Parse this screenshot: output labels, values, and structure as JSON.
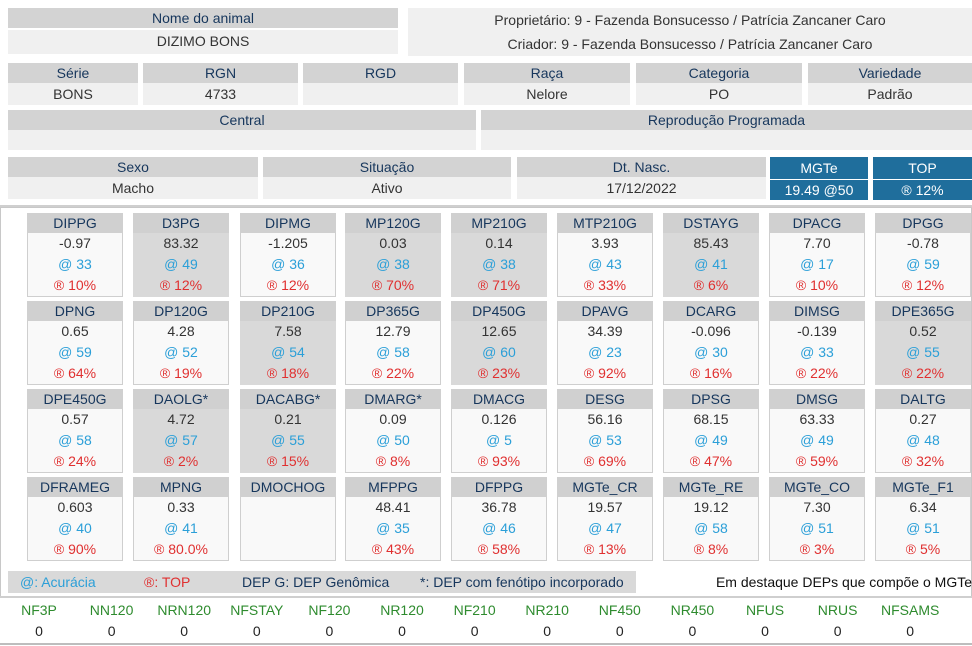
{
  "animal": {
    "name_label": "Nome do animal",
    "name": "DIZIMO BONS",
    "owner": "Proprietário: 9 - Fazenda Bonsucesso / Patrícia Zancaner Caro",
    "breeder": "Criador: 9 - Fazenda Bonsucesso / Patrícia Zancaner Caro"
  },
  "fields": {
    "serie": {
      "label": "Série",
      "value": "BONS"
    },
    "rgn": {
      "label": "RGN",
      "value": "4733"
    },
    "rgd": {
      "label": "RGD",
      "value": ""
    },
    "raca": {
      "label": "Raça",
      "value": "Nelore"
    },
    "categoria": {
      "label": "Categoria",
      "value": "PO"
    },
    "variedade": {
      "label": "Variedade",
      "value": "Padrão"
    },
    "central": {
      "label": "Central",
      "value": ""
    },
    "reproducao": {
      "label": "Reprodução Programada",
      "value": ""
    },
    "sexo": {
      "label": "Sexo",
      "value": "Macho"
    },
    "situacao": {
      "label": "Situação",
      "value": "Ativo"
    },
    "dtnasc": {
      "label": "Dt. Nasc.",
      "value": "17/12/2022"
    },
    "mgte": {
      "label": "MGTe",
      "value": "19.49  @50"
    },
    "top": {
      "label": "TOP",
      "value": "® 12%"
    }
  },
  "deps": [
    {
      "name": "DIPPG",
      "value": "-0.97",
      "acc": "@ 33",
      "top": "® 10%",
      "hl": false
    },
    {
      "name": "D3PG",
      "value": "83.32",
      "acc": "@ 49",
      "top": "® 12%",
      "hl": true
    },
    {
      "name": "DIPMG",
      "value": "-1.205",
      "acc": "@ 36",
      "top": "® 12%",
      "hl": false
    },
    {
      "name": "MP120G",
      "value": "0.03",
      "acc": "@ 38",
      "top": "® 70%",
      "hl": true
    },
    {
      "name": "MP210G",
      "value": "0.14",
      "acc": "@ 38",
      "top": "® 71%",
      "hl": true
    },
    {
      "name": "MTP210G",
      "value": "3.93",
      "acc": "@ 43",
      "top": "® 33%",
      "hl": false
    },
    {
      "name": "DSTAYG",
      "value": "85.43",
      "acc": "@ 41",
      "top": "® 6%",
      "hl": true
    },
    {
      "name": "DPACG",
      "value": "7.70",
      "acc": "@ 17",
      "top": "® 10%",
      "hl": false
    },
    {
      "name": "DPGG",
      "value": "-0.78",
      "acc": "@ 59",
      "top": "® 12%",
      "hl": false
    },
    {
      "name": "DPNG",
      "value": "0.65",
      "acc": "@ 59",
      "top": "® 64%",
      "hl": false
    },
    {
      "name": "DP120G",
      "value": "4.28",
      "acc": "@ 52",
      "top": "® 19%",
      "hl": false
    },
    {
      "name": "DP210G",
      "value": "7.58",
      "acc": "@ 54",
      "top": "® 18%",
      "hl": true
    },
    {
      "name": "DP365G",
      "value": "12.79",
      "acc": "@ 58",
      "top": "® 22%",
      "hl": false
    },
    {
      "name": "DP450G",
      "value": "12.65",
      "acc": "@ 60",
      "top": "® 23%",
      "hl": true
    },
    {
      "name": "DPAVG",
      "value": "34.39",
      "acc": "@ 23",
      "top": "® 92%",
      "hl": false
    },
    {
      "name": "DCARG",
      "value": "-0.096",
      "acc": "@ 30",
      "top": "® 16%",
      "hl": false
    },
    {
      "name": "DIMSG",
      "value": "-0.139",
      "acc": "@ 33",
      "top": "® 22%",
      "hl": false
    },
    {
      "name": "DPE365G",
      "value": "0.52",
      "acc": "@ 55",
      "top": "® 22%",
      "hl": true
    },
    {
      "name": "DPE450G",
      "value": "0.57",
      "acc": "@ 58",
      "top": "® 24%",
      "hl": false
    },
    {
      "name": "DAOLG*",
      "value": "4.72",
      "acc": "@ 57",
      "top": "® 2%",
      "hl": true
    },
    {
      "name": "DACABG*",
      "value": "0.21",
      "acc": "@ 55",
      "top": "® 15%",
      "hl": true
    },
    {
      "name": "DMARG*",
      "value": "0.09",
      "acc": "@ 50",
      "top": "® 8%",
      "hl": false
    },
    {
      "name": "DMACG",
      "value": "0.126",
      "acc": "@ 5",
      "top": "® 93%",
      "hl": false
    },
    {
      "name": "DESG",
      "value": "56.16",
      "acc": "@ 53",
      "top": "® 69%",
      "hl": false
    },
    {
      "name": "DPSG",
      "value": "68.15",
      "acc": "@ 49",
      "top": "® 47%",
      "hl": false
    },
    {
      "name": "DMSG",
      "value": "63.33",
      "acc": "@ 49",
      "top": "® 59%",
      "hl": false
    },
    {
      "name": "DALTG",
      "value": "0.27",
      "acc": "@ 48",
      "top": "® 32%",
      "hl": false
    },
    {
      "name": "DFRAMEG",
      "value": "0.603",
      "acc": "@ 40",
      "top": "® 90%",
      "hl": false
    },
    {
      "name": "MPNG",
      "value": "0.33",
      "acc": "@ 41",
      "top": "® 80.0%",
      "hl": false
    },
    {
      "name": "DMOCHOG",
      "value": "",
      "acc": "",
      "top": "",
      "hl": false
    },
    {
      "name": "MFPPG",
      "value": "48.41",
      "acc": "@ 35",
      "top": "® 43%",
      "hl": false
    },
    {
      "name": "DFPPG",
      "value": "36.78",
      "acc": "@ 46",
      "top": "® 58%",
      "hl": false
    },
    {
      "name": "MGTe_CR",
      "value": "19.57",
      "acc": "@ 47",
      "top": "® 13%",
      "hl": false
    },
    {
      "name": "MGTe_RE",
      "value": "19.12",
      "acc": "@ 58",
      "top": "® 8%",
      "hl": false
    },
    {
      "name": "MGTe_CO",
      "value": "7.30",
      "acc": "@ 51",
      "top": "® 3%",
      "hl": false
    },
    {
      "name": "MGTe_F1",
      "value": "6.34",
      "acc": "@ 51",
      "top": "® 5%",
      "hl": false
    }
  ],
  "legend": {
    "acc": "@: Acurácia",
    "top": "®: TOP",
    "depg": "DEP G: DEP Genômica",
    "feno": "*: DEP com fenótipo incorporado",
    "destaque": "Em destaque DEPs que compõe o MGTe"
  },
  "nf": [
    {
      "label": "NF3P",
      "value": "0"
    },
    {
      "label": "NN120",
      "value": "0"
    },
    {
      "label": "NRN120",
      "value": "0"
    },
    {
      "label": "NFSTAY",
      "value": "0"
    },
    {
      "label": "NF120",
      "value": "0"
    },
    {
      "label": "NR120",
      "value": "0"
    },
    {
      "label": "NF210",
      "value": "0"
    },
    {
      "label": "NR210",
      "value": "0"
    },
    {
      "label": "NF450",
      "value": "0"
    },
    {
      "label": "NR450",
      "value": "0"
    },
    {
      "label": "NFUS",
      "value": "0"
    },
    {
      "label": "NRUS",
      "value": "0"
    },
    {
      "label": "NFSAMS",
      "value": "0"
    }
  ]
}
